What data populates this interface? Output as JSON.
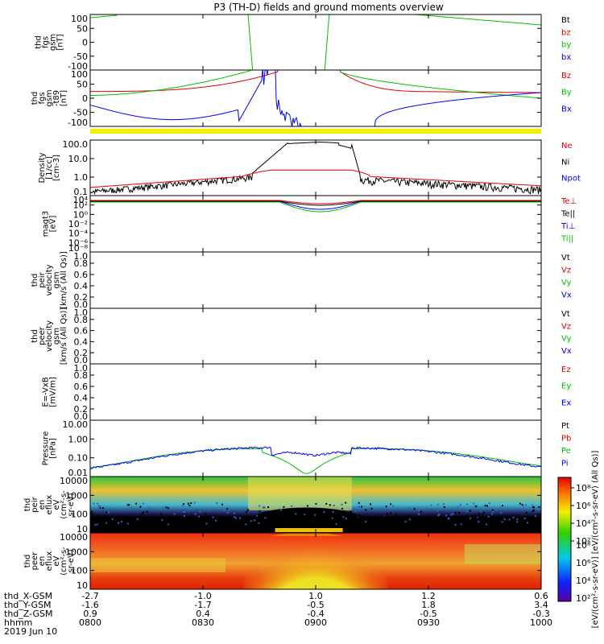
{
  "chart_data": {
    "type": "line",
    "title": "P3 (TH-D) fields and ground moments overview",
    "panels": [
      {
        "id": "fgs",
        "ylabel": [
          "thd",
          "fgs",
          "gsm",
          "[nT]"
        ],
        "yticks": [
          "100",
          "50",
          "0",
          "-50",
          "-100"
        ],
        "legend": [
          {
            "name": "Bt",
            "color": "#000000"
          },
          {
            "name": "bz",
            "color": "#e00000"
          },
          {
            "name": "by",
            "color": "#00c000"
          },
          {
            "name": "bx",
            "color": "#0000ff"
          }
        ]
      },
      {
        "id": "fgs_b",
        "ylabel": [
          "thd",
          "fgs",
          "gsm",
          "-t89",
          "[nT]"
        ],
        "yticks": [
          "100",
          "50",
          "0",
          "-50",
          "-100"
        ],
        "legend": [
          {
            "name": "Bz",
            "color": "#e00000"
          },
          {
            "name": "By",
            "color": "#00c000"
          },
          {
            "name": "Bx",
            "color": "#0000ff"
          }
        ]
      },
      {
        "id": "density",
        "ylabel": [
          "Density",
          "[1/cc]",
          "[cm-3]"
        ],
        "yticks": [
          "100.0",
          "10.0",
          "1.0",
          "0.1"
        ],
        "legend": [
          {
            "name": "Ne",
            "color": "#e00000"
          },
          {
            "name": "Ni",
            "color": "#000000"
          },
          {
            "name": "Npot",
            "color": "#0000ff"
          }
        ]
      },
      {
        "id": "temp",
        "ylabel": [
          "magt3",
          "[eV]"
        ],
        "yticks": [
          "10⁴",
          "10²",
          "10⁰",
          "10⁻²",
          "10⁻⁴",
          "10⁻⁶",
          "10⁻⁸"
        ],
        "legend": [
          {
            "name": "Te⊥",
            "color": "#e00000"
          },
          {
            "name": "Te||",
            "color": "#000000"
          },
          {
            "name": "Ti⊥",
            "color": "#0000ff"
          },
          {
            "name": "Ti||",
            "color": "#00c000"
          }
        ]
      },
      {
        "id": "vi",
        "ylabel": [
          "thd",
          "peir",
          "velocity",
          "gsm",
          "[km/s (All Qs)]"
        ],
        "yticks": [
          "1.0",
          "0.8",
          "0.6",
          "0.4",
          "0.2",
          "0.0"
        ],
        "legend": [
          {
            "name": "Vt",
            "color": "#000000"
          },
          {
            "name": "Vz",
            "color": "#e00000"
          },
          {
            "name": "Vy",
            "color": "#00c000"
          },
          {
            "name": "Vx",
            "color": "#0000ff"
          }
        ]
      },
      {
        "id": "ve",
        "ylabel": [
          "thd",
          "peer",
          "velocity",
          "gsm",
          "[km/s (All Qs)]"
        ],
        "yticks": [
          "1.0",
          "0.8",
          "0.6",
          "0.4",
          "0.2",
          "0.0"
        ],
        "legend": [
          {
            "name": "Vt",
            "color": "#000000"
          },
          {
            "name": "Vz",
            "color": "#e00000"
          },
          {
            "name": "Vy",
            "color": "#00c000"
          },
          {
            "name": "Vx",
            "color": "#0000ff"
          }
        ]
      },
      {
        "id": "e",
        "ylabel": [
          "E=-VxB",
          "[mV/m]"
        ],
        "yticks": [
          "1.0",
          "0.8",
          "0.6",
          "0.4",
          "0.2",
          "0.0"
        ],
        "legend": [
          {
            "name": "Ez",
            "color": "#e00000"
          },
          {
            "name": "Ey",
            "color": "#00c000"
          },
          {
            "name": "Ex",
            "color": "#0000ff"
          }
        ]
      },
      {
        "id": "pressure",
        "ylabel": [
          "Pressure",
          "[nPa]"
        ],
        "yticks": [
          "10.00",
          "1.00",
          "0.10",
          "0.01"
        ],
        "legend": [
          {
            "name": "Pt",
            "color": "#000000"
          },
          {
            "name": "Pb",
            "color": "#e00000"
          },
          {
            "name": "Pe",
            "color": "#00c000"
          },
          {
            "name": "Pi",
            "color": "#0000ff"
          }
        ]
      },
      {
        "id": "ion_spec",
        "ylabel": [
          "thd",
          "peir",
          "en",
          "eflux",
          "eV",
          "(cm²-s-",
          "sr-eV)"
        ],
        "yticks": [
          "10000",
          "1000",
          "100",
          "10"
        ]
      },
      {
        "id": "ele_spec",
        "ylabel": [
          "thd",
          "peer",
          "en",
          "eflux",
          "eV",
          "(cm²-s-",
          "sr-eV)"
        ],
        "yticks": [
          "10000",
          "1000",
          "100",
          "10"
        ]
      }
    ],
    "colorbar": {
      "label": "[eV/(cm²-s-sr-eV)] [eV/(cm²-s-sr-eV) (All Qs)]",
      "ticks": [
        "10⁸",
        "10⁶",
        "10⁴",
        "10²"
      ]
    },
    "xaxis": {
      "rows": [
        {
          "label": "thd_X-GSM",
          "values": [
            "-2.7",
            "-1.0",
            "1.0",
            "1.2",
            "0.6"
          ]
        },
        {
          "label": "thd_Y-GSM",
          "values": [
            "-1.6",
            "-1.7",
            "-0.5",
            "1.8",
            "3.4"
          ]
        },
        {
          "label": "thd_Z-GSM",
          "values": [
            "0.9",
            "0.4",
            "-0.4",
            "-0.5",
            "-0.3"
          ]
        },
        {
          "label": "hhmm",
          "values": [
            "0800",
            "0830",
            "0900",
            "0930",
            "1000"
          ]
        }
      ],
      "date": "2019 Jun 10"
    },
    "series_samples": {
      "density_Ne": [
        0.3,
        0.5,
        0.7,
        0.9,
        2.5,
        2.5,
        2.5,
        0.9,
        0.7,
        0.5,
        0.3
      ],
      "density_Ni": [
        0.1,
        0.3,
        0.6,
        1.0,
        100,
        120,
        80,
        0.5,
        0.3,
        0.2,
        0.2
      ],
      "pressure_Pi": [
        0.01,
        0.05,
        0.12,
        0.2,
        0.1,
        0.1,
        0.2,
        0.15,
        0.1,
        0.05,
        0.02
      ],
      "pressure_Pe": [
        0.01,
        0.05,
        0.1,
        0.15,
        0.02,
        0.005,
        0.03,
        0.15,
        0.1,
        0.05,
        0.02
      ]
    }
  }
}
